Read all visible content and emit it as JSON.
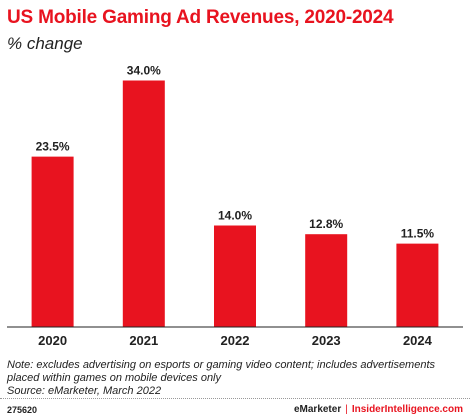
{
  "chart_data": {
    "type": "bar",
    "title": "US Mobile Gaming Ad Revenues, 2020-2024",
    "subtitle": "% change",
    "categories": [
      "2020",
      "2021",
      "2022",
      "2023",
      "2024"
    ],
    "values": [
      23.5,
      34.0,
      14.0,
      12.8,
      11.5
    ],
    "value_labels": [
      "23.5%",
      "34.0%",
      "14.0%",
      "12.8%",
      "11.5%"
    ],
    "xlabel": "",
    "ylabel": "",
    "ylim": [
      0,
      40
    ],
    "grid": false,
    "bar_color": "#e8131f"
  },
  "note": {
    "line1": "Note: excludes advertising on esports or gaming video content; includes advertisements",
    "line2": "placed within games on mobile devices only",
    "line3": "Source: eMarketer, March 2022"
  },
  "footer": {
    "chart_id": "275620",
    "brand_left": "eMarketer",
    "separator": "|",
    "brand_right": "InsiderIntelligence.com"
  }
}
